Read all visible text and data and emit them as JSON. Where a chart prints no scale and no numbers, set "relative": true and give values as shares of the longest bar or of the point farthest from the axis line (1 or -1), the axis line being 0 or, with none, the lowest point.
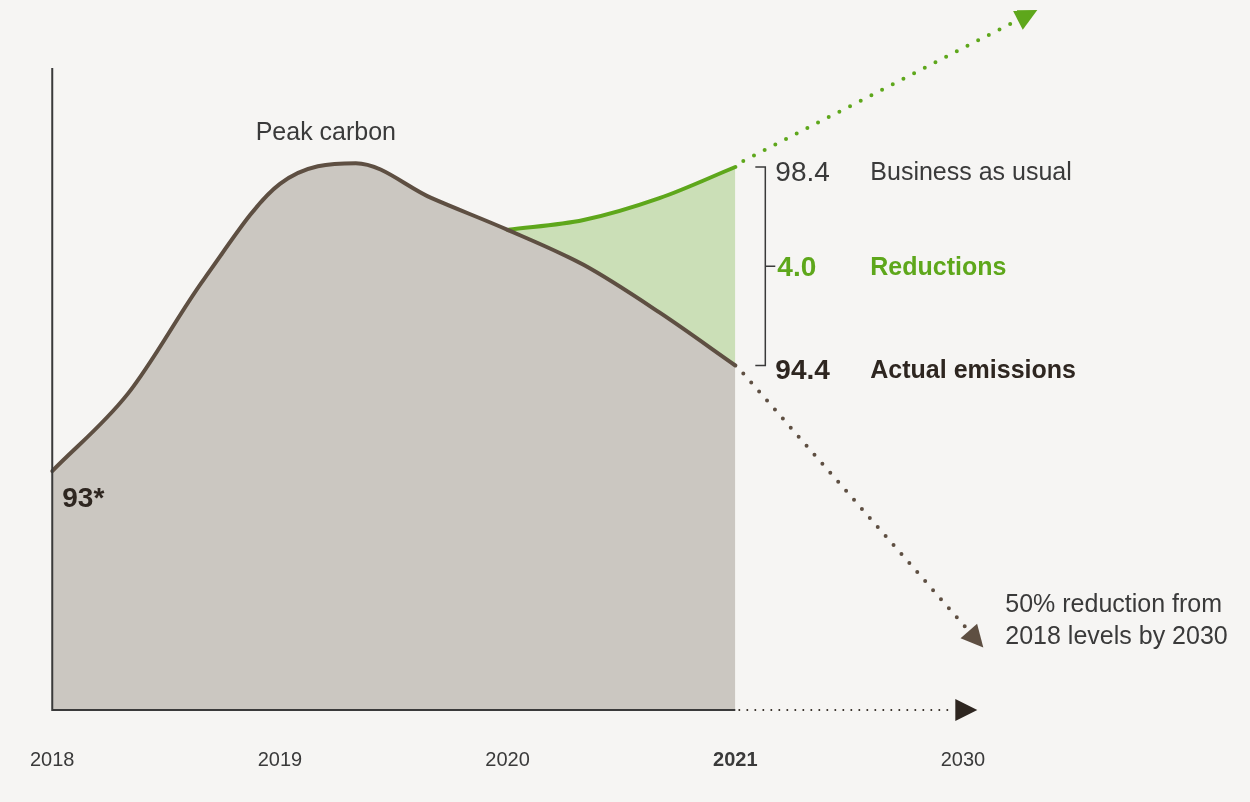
{
  "chart_data": {
    "type": "area",
    "relative": true,
    "legend": false,
    "categories": [
      "2018",
      null,
      null,
      "2019",
      null,
      null,
      "2020",
      null,
      null,
      "2021",
      null,
      null,
      "2030"
    ],
    "series": [
      {
        "name": "Actual emissions",
        "color": "#5e4f42",
        "values": [
          0.437,
          0.579,
          0.788,
          0.962,
          1.0,
          0.936,
          0.878,
          0.814,
          0.727,
          0.63,
          null,
          null,
          null
        ]
      },
      {
        "name": "Business as usual",
        "color": "#5ea71b",
        "values": [
          null,
          null,
          null,
          null,
          null,
          null,
          0.878,
          0.896,
          0.936,
          0.993,
          null,
          null,
          null
        ]
      }
    ],
    "annotations": [
      "Peak carbon",
      "93*",
      "98.4",
      "4.0",
      "Reductions",
      "94.4",
      "50% reduction from 2018 levels by 2030"
    ]
  }
}
